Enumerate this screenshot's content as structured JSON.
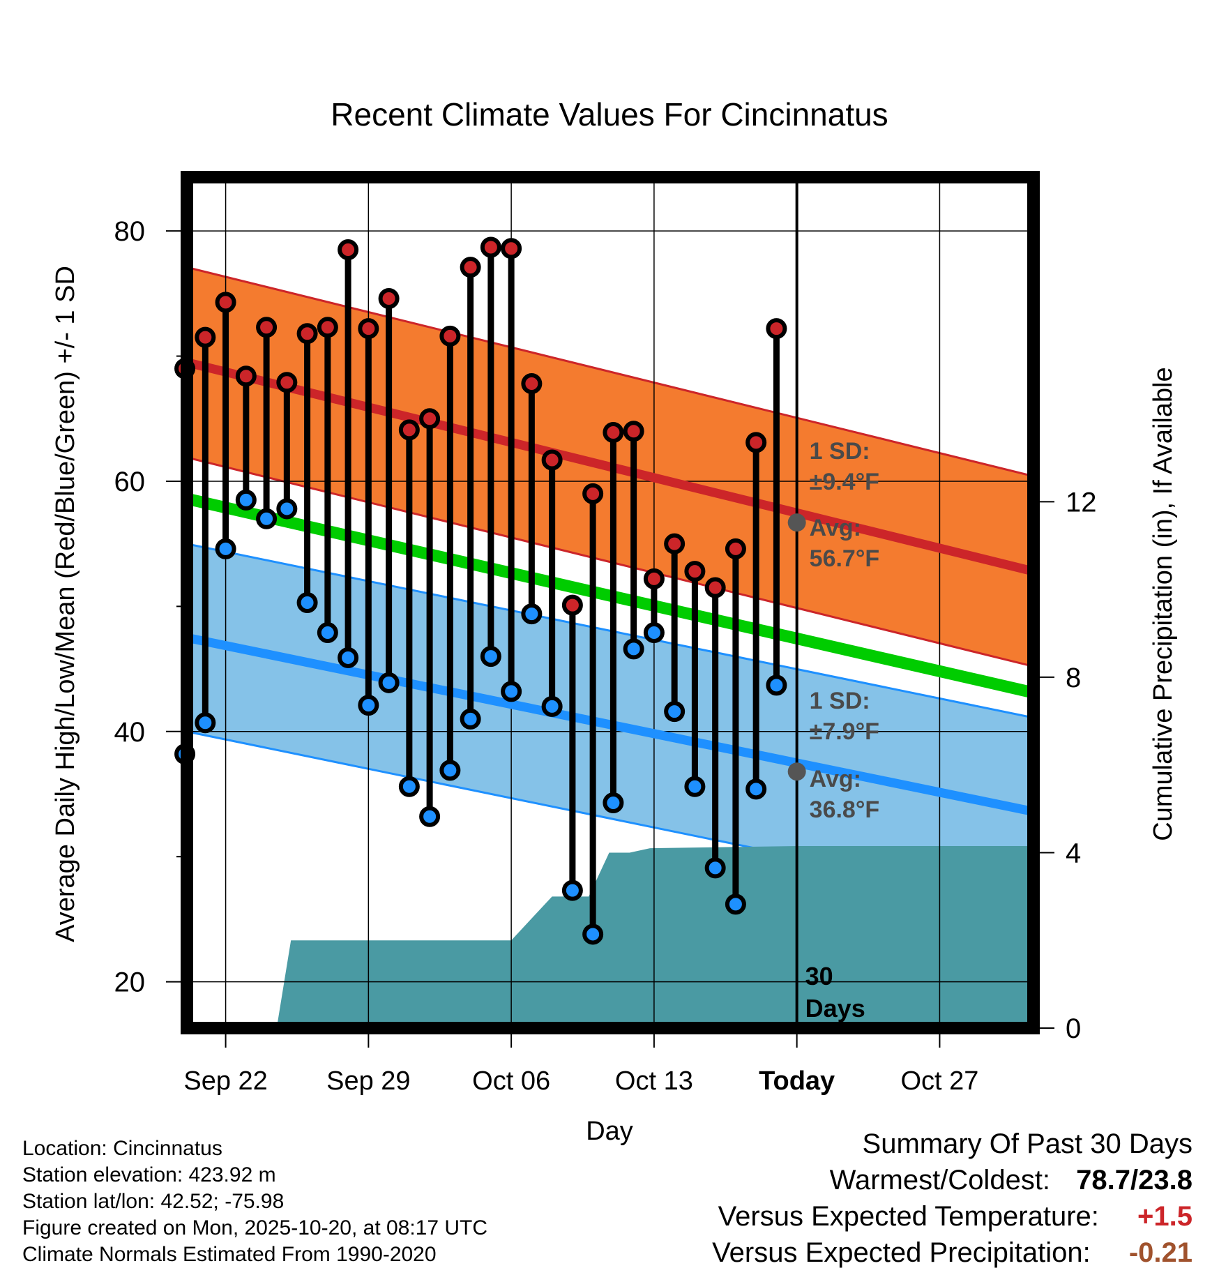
{
  "chart_data": {
    "type": "line",
    "title": "Recent Climate Values For Cincinnatus",
    "xlabel": "Day",
    "ylabel": "Average Daily High/Low/Mean (Red/Blue/Green) +/- 1 SD",
    "y2label": "Cumulative Precipitation (in), If Available",
    "ylim": [
      16.3,
      84.3
    ],
    "y2lim": [
      0,
      19.4
    ],
    "yticks": [
      20,
      40,
      60,
      80
    ],
    "y2ticks": [
      0,
      4,
      8,
      12
    ],
    "x_days_range": [
      -29.9,
      11.6
    ],
    "xticks": [
      {
        "day": -28,
        "label": "Sep 22"
      },
      {
        "day": -21,
        "label": "Sep 29"
      },
      {
        "day": -14,
        "label": "Oct 06"
      },
      {
        "day": -7,
        "label": "Oct 13"
      },
      {
        "day": 0,
        "label": "Today"
      },
      {
        "day": 7,
        "label": "Oct 27"
      }
    ],
    "normals": {
      "high_start": 69.5,
      "high_end": 52.8,
      "high_sd": 7.6,
      "mean_start": 58.6,
      "mean_end": 43.1,
      "low_start": 47.5,
      "low_end": 33.6,
      "low_sd": 7.5
    },
    "daily": [
      {
        "day": -30,
        "high": 69.0,
        "low": 38.2
      },
      {
        "day": -29,
        "high": 71.5,
        "low": 40.7
      },
      {
        "day": -28,
        "high": 74.3,
        "low": 54.6
      },
      {
        "day": -27,
        "high": 68.4,
        "low": 58.5
      },
      {
        "day": -26,
        "high": 72.3,
        "low": 57.0
      },
      {
        "day": -25,
        "high": 67.9,
        "low": 57.8
      },
      {
        "day": -24,
        "high": 71.8,
        "low": 50.3
      },
      {
        "day": -23,
        "high": 72.3,
        "low": 47.9
      },
      {
        "day": -22,
        "high": 78.5,
        "low": 45.9
      },
      {
        "day": -21,
        "high": 72.2,
        "low": 42.1
      },
      {
        "day": -20,
        "high": 74.6,
        "low": 43.9
      },
      {
        "day": -19,
        "high": 64.1,
        "low": 35.6
      },
      {
        "day": -18,
        "high": 65.0,
        "low": 33.2
      },
      {
        "day": -17,
        "high": 71.6,
        "low": 36.9
      },
      {
        "day": -16,
        "high": 77.1,
        "low": 41.0
      },
      {
        "day": -15,
        "high": 78.7,
        "low": 46.0
      },
      {
        "day": -14,
        "high": 78.6,
        "low": 43.2
      },
      {
        "day": -13,
        "high": 67.8,
        "low": 49.4
      },
      {
        "day": -12,
        "high": 61.7,
        "low": 42.0
      },
      {
        "day": -11,
        "high": 50.1,
        "low": 27.3
      },
      {
        "day": -10,
        "high": 59.0,
        "low": 23.8
      },
      {
        "day": -9,
        "high": 63.9,
        "low": 34.3
      },
      {
        "day": -8,
        "high": 64.0,
        "low": 46.6
      },
      {
        "day": -7,
        "high": 52.2,
        "low": 47.9
      },
      {
        "day": -6,
        "high": 55.0,
        "low": 41.6
      },
      {
        "day": -5,
        "high": 52.8,
        "low": 35.6
      },
      {
        "day": -4,
        "high": 51.5,
        "low": 29.1
      },
      {
        "day": -3,
        "high": 54.6,
        "low": 26.2
      },
      {
        "day": -2,
        "high": 63.1,
        "low": 35.4
      },
      {
        "day": -1,
        "high": 72.2,
        "low": 43.7
      }
    ],
    "precip_cumulative": [
      {
        "day": -29.9,
        "value": 0.0
      },
      {
        "day": -26.6,
        "value": 0.0
      },
      {
        "day": -25.5,
        "value": 0.0
      },
      {
        "day": -24.8,
        "value": 2.0
      },
      {
        "day": -14.0,
        "value": 2.0
      },
      {
        "day": -13.0,
        "value": 2.5
      },
      {
        "day": -12.0,
        "value": 3.0
      },
      {
        "day": -10.2,
        "value": 3.0
      },
      {
        "day": -9.2,
        "value": 4.0
      },
      {
        "day": -8.2,
        "value": 4.0
      },
      {
        "day": -7.2,
        "value": 4.1
      },
      {
        "day": 0.0,
        "value": 4.15
      },
      {
        "day": 11.6,
        "value": 4.15
      }
    ],
    "annotations": {
      "high_sd": "1 SD:",
      "high_sd_val": "±9.4°F",
      "high_avg": "Avg:",
      "high_avg_val": "56.7°F",
      "low_sd": "1 SD:",
      "low_sd_val": "±7.9°F",
      "low_avg": "Avg:",
      "low_avg_val": "36.8°F",
      "days_num": "30",
      "days_word": "Days",
      "today_high_avg": 56.7,
      "today_low_avg": 36.8
    }
  },
  "info": {
    "location": "Location: Cincinnatus",
    "elevation": "Station elevation: 423.92 m",
    "latlon": "Station lat/lon: 42.52; -75.98",
    "created": "Figure created on Mon, 2025-10-20, at 08:17 UTC",
    "normals": "Climate Normals Estimated From 1990-2020"
  },
  "summary": {
    "heading": "Summary Of Past 30 Days",
    "warm_cold_label": "Warmest/Coldest:",
    "warm_cold_value": "78.7/23.8",
    "temp_label": "Versus Expected Temperature:",
    "temp_value": "+1.5",
    "precip_label": "Versus Expected Precipitation:",
    "precip_value": "-0.21"
  },
  "colors": {
    "high": "#cc2529",
    "high_band": "#f47b2f",
    "mean": "#00cc00",
    "low": "#1e90ff",
    "low_band": "#85c2e8",
    "precip": "#4a9aa3",
    "temp_anomaly": "#cc2529",
    "precip_anomaly": "#a0522d"
  }
}
